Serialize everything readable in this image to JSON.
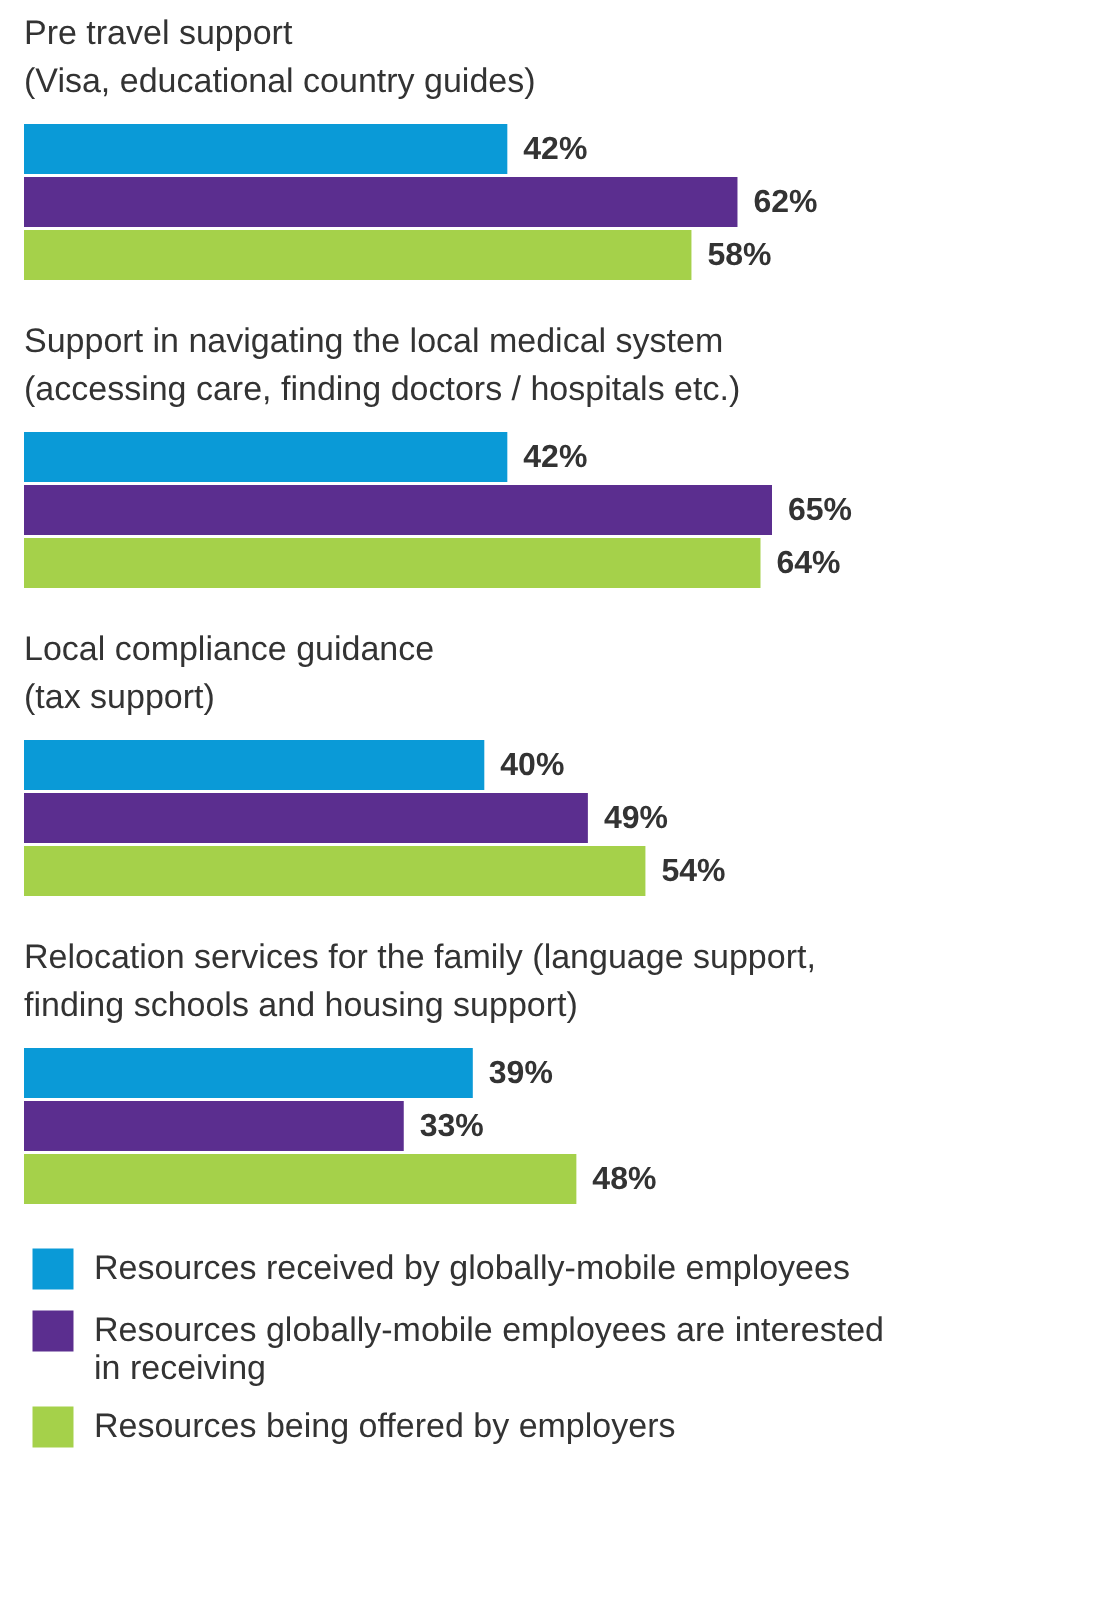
{
  "chart_data": {
    "type": "bar",
    "orientation": "horizontal",
    "categories": [
      "Pre travel support\n(Visa, educational country guides)",
      "Support in navigating the local medical system\n(accessing care, finding doctors / hospitals etc.)",
      "Local compliance guidance\n(tax support)",
      "Relocation services for the family (language support,\nfinding schools and housing support)"
    ],
    "series": [
      {
        "name": "Resources received by globally-mobile employees",
        "color": "#0a9ad7",
        "values": [
          42,
          42,
          40,
          39
        ],
        "value_labels": [
          "42%",
          "42%",
          "40%",
          "39%"
        ]
      },
      {
        "name": "Resources globally-mobile employees are interested in receiving",
        "color": "#5b2e8f",
        "values": [
          62,
          65,
          49,
          33
        ],
        "value_labels": [
          "62%",
          "65%",
          "49%",
          "33%"
        ]
      },
      {
        "name": "Resources being offered by employers",
        "color": "#a5d14a",
        "values": [
          58,
          64,
          54,
          48
        ],
        "value_labels": [
          "58%",
          "64%",
          "54%",
          "48%"
        ]
      }
    ],
    "legend": "bottom"
  }
}
